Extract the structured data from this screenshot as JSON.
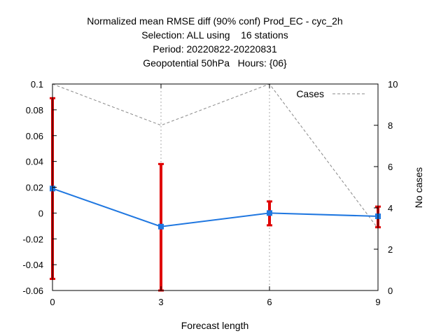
{
  "chart_data": {
    "type": "line",
    "title_lines": [
      "Normalized mean RMSE diff (90% conf) Prod_EC - cyc_2h",
      "Selection: ALL using    16 stations",
      "Period: 20220822-20220831",
      "Geopotential 50hPa   Hours: {06}"
    ],
    "xlabel": "Forecast length",
    "ylabel": "",
    "y2label": "No cases",
    "x": [
      0,
      3,
      6,
      9
    ],
    "xlim": [
      0,
      9
    ],
    "ylim": [
      -0.06,
      0.1
    ],
    "y2lim": [
      0,
      10
    ],
    "x_ticks": [
      0,
      3,
      6,
      9
    ],
    "y_ticks": [
      0.1,
      0.08,
      0.06,
      0.04,
      0.02,
      0,
      -0.02,
      -0.04,
      -0.06
    ],
    "y_tick_labels": [
      "0.1",
      "0.08",
      "0.06",
      "0.04",
      "0.02",
      "0",
      "-0.02",
      "-0.04",
      "-0.06"
    ],
    "y2_ticks": [
      0,
      2,
      4,
      6,
      8,
      10
    ],
    "grid": true,
    "series": [
      {
        "values": [
          0.019,
          -0.0105,
          0.0,
          -0.0025
        ],
        "err_low": [
          -0.051,
          -0.06,
          -0.0095,
          -0.011
        ],
        "err_high": [
          0.089,
          0.038,
          0.009,
          0.005
        ],
        "color": "#1f77e0",
        "error_color": "#e00000"
      },
      {
        "name": "Cases",
        "axis": "y2",
        "values": [
          10,
          8,
          10,
          3
        ],
        "color": "#888888",
        "style": "dashed"
      }
    ],
    "legend_position": "top-right"
  }
}
